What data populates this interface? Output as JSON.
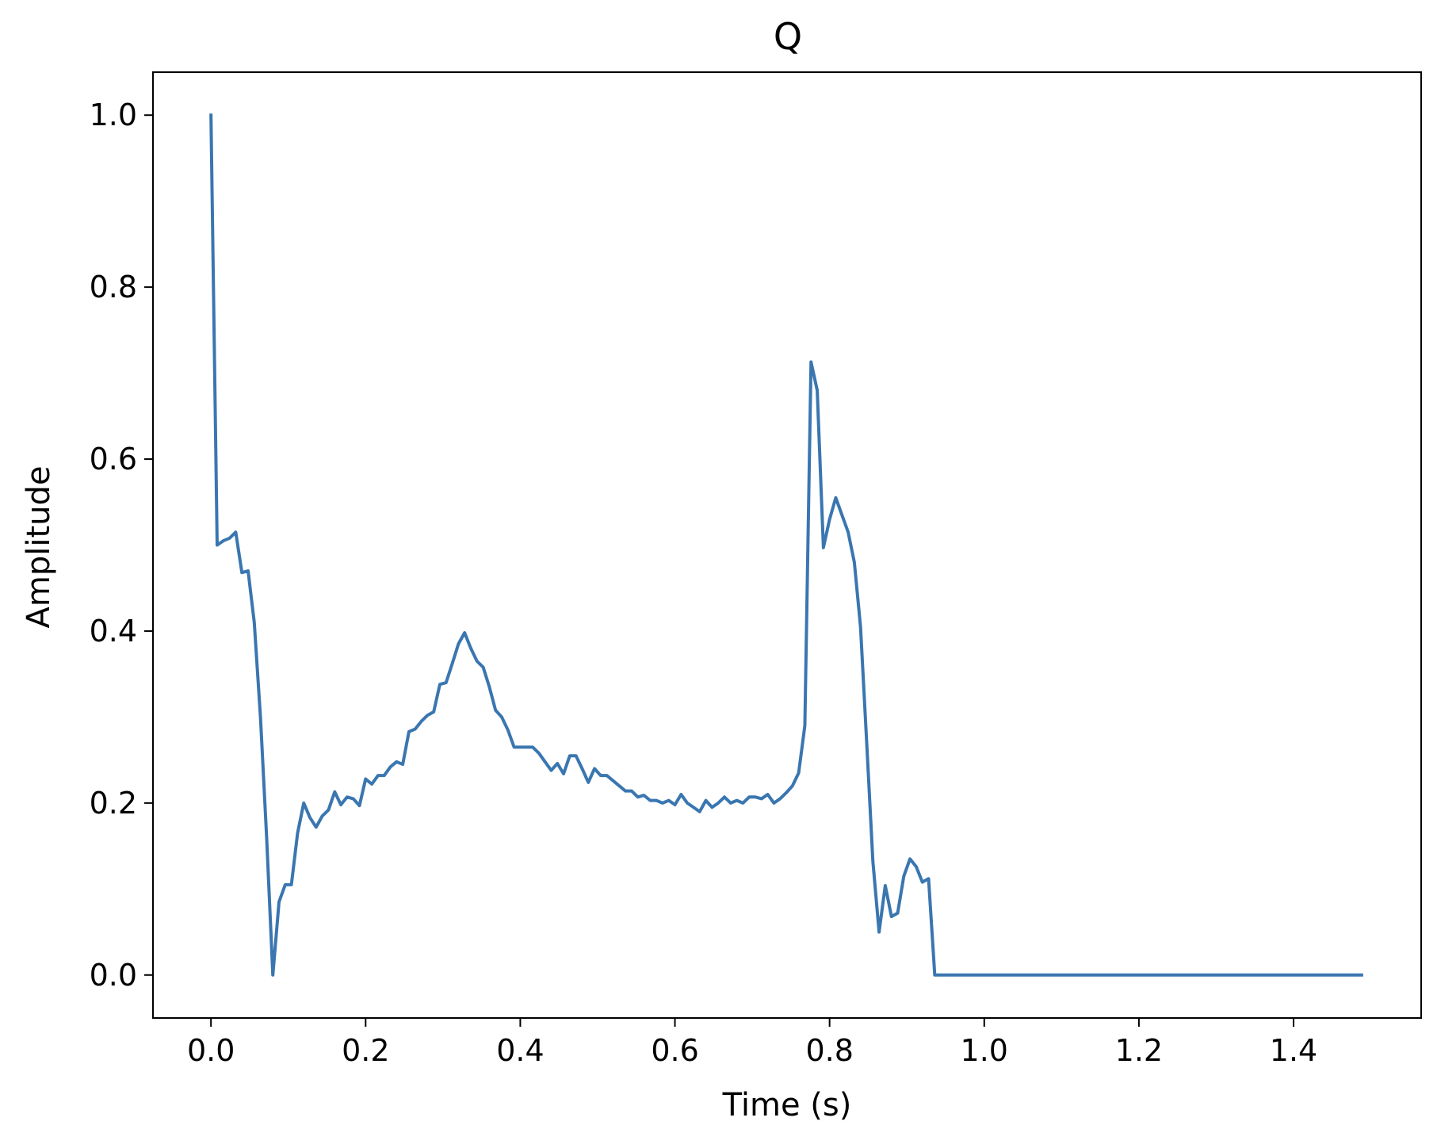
{
  "chart_data": {
    "type": "line",
    "title": "Q",
    "xlabel": "Time (s)",
    "ylabel": "Amplitude",
    "xlim": [
      -0.075,
      1.565
    ],
    "ylim": [
      -0.05,
      1.05
    ],
    "grid": false,
    "x_ticks": [
      0.0,
      0.2,
      0.4,
      0.6,
      0.8,
      1.0,
      1.2,
      1.4
    ],
    "x_tick_labels": [
      "0.0",
      "0.2",
      "0.4",
      "0.6",
      "0.8",
      "1.0",
      "1.2",
      "1.4"
    ],
    "y_ticks": [
      0.0,
      0.2,
      0.4,
      0.6,
      0.8,
      1.0
    ],
    "y_tick_labels": [
      "0.0",
      "0.2",
      "0.4",
      "0.6",
      "0.8",
      "1.0"
    ],
    "line_color": "#3a76b0",
    "series": [
      {
        "x": [
          0.0,
          0.008,
          0.016,
          0.024,
          0.032,
          0.04,
          0.048,
          0.056,
          0.064,
          0.072,
          0.08,
          0.088,
          0.096,
          0.104,
          0.112,
          0.12,
          0.128,
          0.136,
          0.144,
          0.152,
          0.16,
          0.168,
          0.176,
          0.184,
          0.192,
          0.2,
          0.208,
          0.216,
          0.224,
          0.232,
          0.24,
          0.248,
          0.256,
          0.264,
          0.272,
          0.28,
          0.288,
          0.296,
          0.304,
          0.312,
          0.32,
          0.328,
          0.336,
          0.344,
          0.352,
          0.36,
          0.368,
          0.376,
          0.384,
          0.392,
          0.4,
          0.408,
          0.416,
          0.424,
          0.432,
          0.44,
          0.448,
          0.456,
          0.464,
          0.472,
          0.48,
          0.488,
          0.496,
          0.504,
          0.512,
          0.52,
          0.528,
          0.536,
          0.544,
          0.552,
          0.56,
          0.568,
          0.576,
          0.584,
          0.592,
          0.6,
          0.608,
          0.616,
          0.624,
          0.632,
          0.64,
          0.648,
          0.656,
          0.664,
          0.672,
          0.68,
          0.688,
          0.696,
          0.704,
          0.712,
          0.72,
          0.728,
          0.736,
          0.744,
          0.752,
          0.76,
          0.768,
          0.776,
          0.784,
          0.792,
          0.8,
          0.808,
          0.816,
          0.824,
          0.832,
          0.84,
          0.848,
          0.856,
          0.864,
          0.872,
          0.88,
          0.888,
          0.896,
          0.904,
          0.912,
          0.92,
          0.928,
          0.936,
          1.0,
          1.1,
          1.2,
          1.3,
          1.4,
          1.488
        ],
        "y": [
          1.0,
          0.5,
          0.505,
          0.508,
          0.515,
          0.468,
          0.47,
          0.41,
          0.3,
          0.16,
          0.0,
          0.085,
          0.105,
          0.105,
          0.165,
          0.2,
          0.183,
          0.172,
          0.185,
          0.192,
          0.213,
          0.198,
          0.207,
          0.205,
          0.197,
          0.228,
          0.222,
          0.232,
          0.232,
          0.242,
          0.248,
          0.245,
          0.283,
          0.286,
          0.295,
          0.302,
          0.306,
          0.338,
          0.34,
          0.362,
          0.385,
          0.398,
          0.38,
          0.365,
          0.358,
          0.335,
          0.308,
          0.3,
          0.285,
          0.265,
          0.265,
          0.265,
          0.265,
          0.258,
          0.248,
          0.238,
          0.246,
          0.234,
          0.255,
          0.255,
          0.24,
          0.224,
          0.24,
          0.232,
          0.232,
          0.226,
          0.22,
          0.214,
          0.214,
          0.207,
          0.209,
          0.203,
          0.203,
          0.2,
          0.203,
          0.198,
          0.21,
          0.2,
          0.195,
          0.19,
          0.203,
          0.195,
          0.2,
          0.207,
          0.2,
          0.203,
          0.2,
          0.207,
          0.207,
          0.205,
          0.21,
          0.2,
          0.205,
          0.212,
          0.22,
          0.235,
          0.29,
          0.713,
          0.68,
          0.497,
          0.53,
          0.555,
          0.535,
          0.515,
          0.48,
          0.405,
          0.27,
          0.132,
          0.05,
          0.104,
          0.068,
          0.072,
          0.115,
          0.135,
          0.126,
          0.108,
          0.112,
          0.0,
          0.0,
          0.0,
          0.0,
          0.0,
          0.0,
          0.0
        ]
      }
    ]
  }
}
